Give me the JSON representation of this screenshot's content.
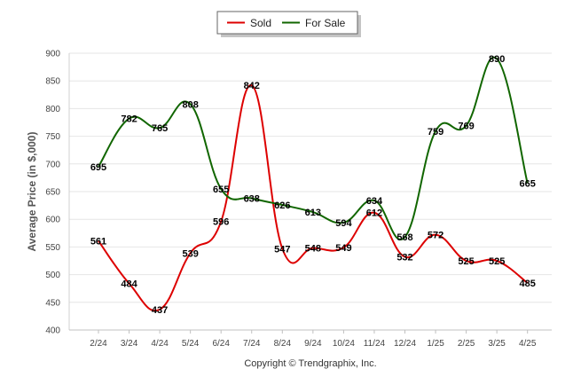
{
  "chart_data": {
    "type": "line",
    "ylabel": "Average Price (in $,000)",
    "xlabel": "",
    "ylim": [
      400,
      900
    ],
    "yticks": [
      400,
      450,
      500,
      550,
      600,
      650,
      700,
      750,
      800,
      850,
      900
    ],
    "categories": [
      "2/24",
      "3/24",
      "4/24",
      "5/24",
      "6/24",
      "7/24",
      "8/24",
      "9/24",
      "10/24",
      "11/24",
      "12/24",
      "1/25",
      "2/25",
      "3/25",
      "4/25"
    ],
    "legend_position": "top-center",
    "grid": true,
    "series": [
      {
        "name": "Sold",
        "color": "#dd0000",
        "values": [
          561,
          484,
          437,
          539,
          596,
          842,
          547,
          548,
          549,
          612,
          532,
          572,
          525,
          525,
          485
        ]
      },
      {
        "name": "For Sale",
        "color": "#116600",
        "values": [
          695,
          782,
          765,
          808,
          655,
          638,
          626,
          613,
          594,
          634,
          568,
          759,
          769,
          890,
          665
        ]
      }
    ],
    "footer": "Copyright © Trendgraphix, Inc."
  }
}
